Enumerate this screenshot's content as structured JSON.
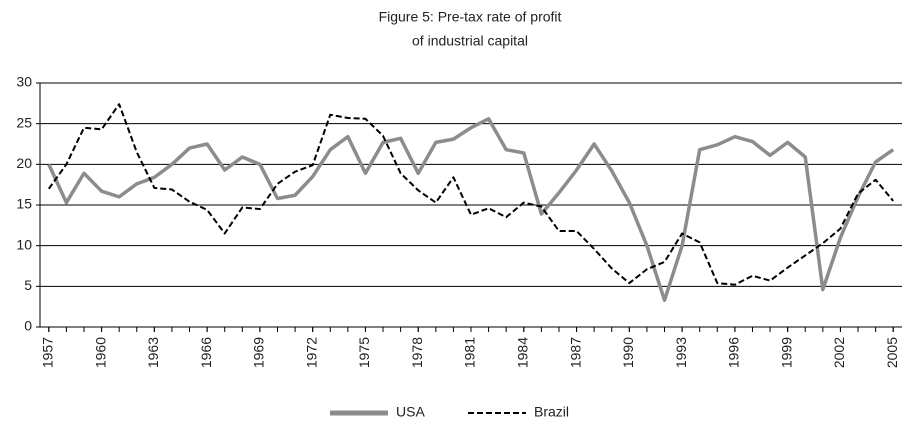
{
  "chart_data": {
    "type": "line",
    "title": [
      "Figure 5: Pre-tax rate of profit",
      "of industrial capital"
    ],
    "x": [
      1957,
      1958,
      1959,
      1960,
      1961,
      1962,
      1963,
      1964,
      1965,
      1966,
      1967,
      1968,
      1969,
      1970,
      1971,
      1972,
      1973,
      1974,
      1975,
      1976,
      1977,
      1978,
      1979,
      1980,
      1981,
      1982,
      1983,
      1984,
      1985,
      1986,
      1987,
      1988,
      1989,
      1990,
      1991,
      1992,
      1993,
      1994,
      1995,
      1996,
      1997,
      1998,
      1999,
      2000,
      2001,
      2002,
      2003,
      2004,
      2005
    ],
    "series": [
      {
        "name": "USA",
        "color": "#8c8c8c",
        "style": "solid",
        "values": [
          20,
          15.3,
          18.9,
          16.7,
          16,
          17.6,
          18.4,
          20,
          22,
          22.5,
          19.3,
          20.9,
          20,
          15.8,
          16.2,
          18.5,
          21.8,
          23.4,
          18.9,
          22.7,
          23.2,
          18.9,
          22.7,
          23.1,
          24.5,
          25.6,
          21.8,
          21.4,
          13.9,
          16.5,
          19.3,
          22.5,
          19.2,
          15.3,
          10,
          3.3,
          10,
          21.8,
          22.4,
          23.4,
          22.8,
          21.1,
          22.7,
          20.9,
          4.6,
          11,
          16,
          20.3,
          21.8
        ]
      },
      {
        "name": "Brazil",
        "color": "#000000",
        "style": "dashed",
        "values": [
          17,
          20,
          24.5,
          24.3,
          27.4,
          21.5,
          17.1,
          16.9,
          15.4,
          14.4,
          11.5,
          14.7,
          14.5,
          17.6,
          19.1,
          19.9,
          26.1,
          25.7,
          25.6,
          23.5,
          18.9,
          16.8,
          15.3,
          18.4,
          13.8,
          14.6,
          13.5,
          15.3,
          14.8,
          11.8,
          11.8,
          9.6,
          7.2,
          5.4,
          7.1,
          8,
          11.5,
          10.4,
          5.4,
          5.2,
          6.3,
          5.7,
          7.3,
          8.8,
          10.3,
          12.1,
          16.4,
          18.1,
          15.5
        ]
      }
    ],
    "xlim": [
      1957,
      2005
    ],
    "xticks": [
      1957,
      1960,
      1963,
      1966,
      1969,
      1972,
      1975,
      1978,
      1981,
      1984,
      1987,
      1990,
      1993,
      1996,
      1999,
      2002,
      2005
    ],
    "ylim": [
      0,
      30
    ],
    "yticks": [
      0,
      5,
      10,
      15,
      20,
      25,
      30
    ],
    "grid": true,
    "legend": "bottom"
  }
}
